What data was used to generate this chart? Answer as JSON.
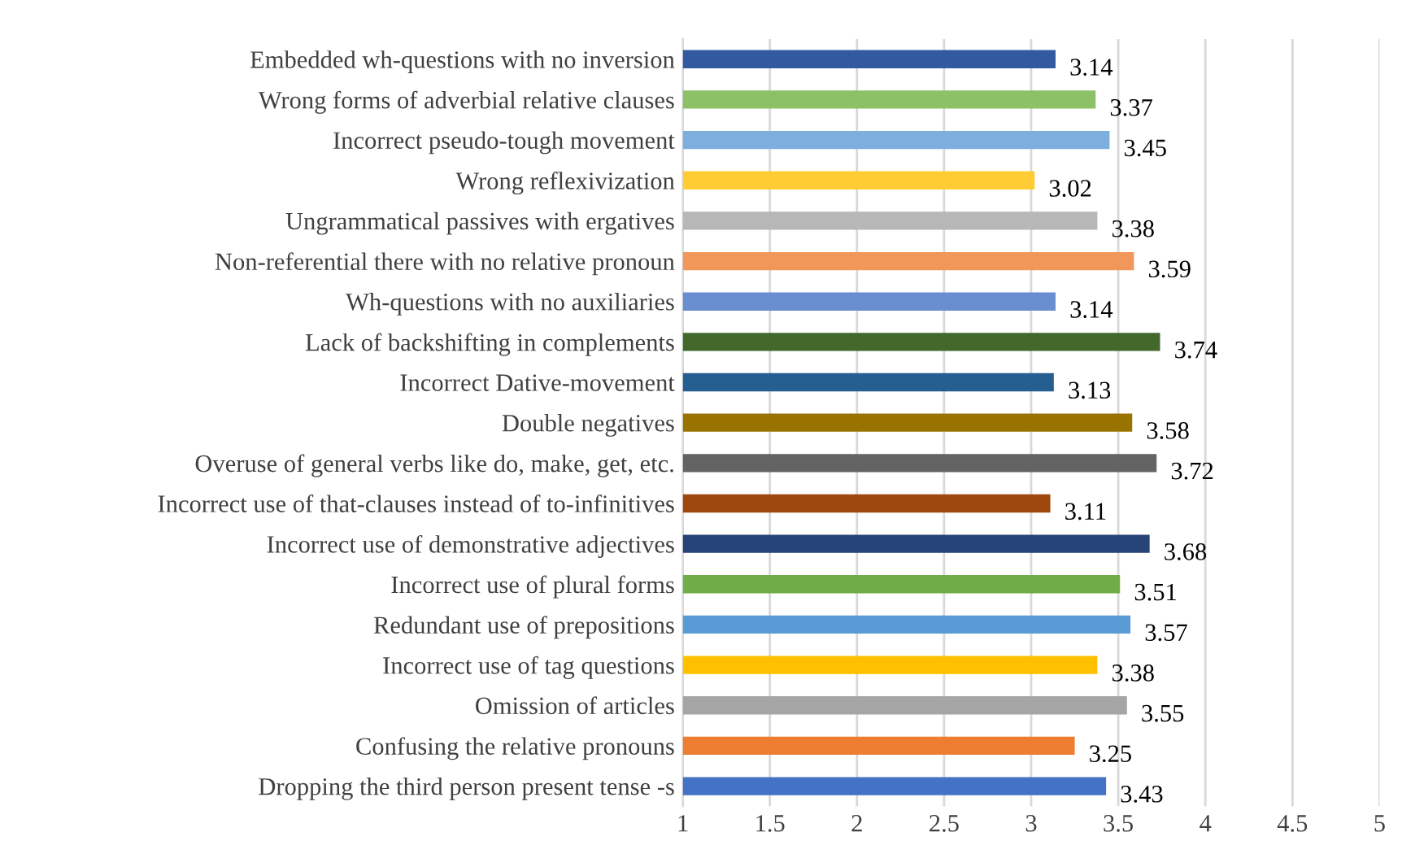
{
  "chart_data": {
    "type": "bar",
    "orientation": "horizontal",
    "categories": [
      "Embedded wh-questions with no inversion",
      "Wrong forms of adverbial relative clauses",
      "Incorrect pseudo-tough movement",
      "Wrong reflexivization",
      "Ungrammatical passives with ergatives",
      "Non-referential there with no relative pronoun",
      "Wh-questions with no auxiliaries",
      "Lack of backshifting in complements",
      "Incorrect Dative-movement",
      "Double negatives",
      "Overuse of general verbs like do, make, get, etc.",
      "Incorrect use of that-clauses instead of to-infinitives",
      "Incorrect use of demonstrative adjectives",
      "Incorrect use of plural forms",
      "Redundant use of prepositions",
      "Incorrect use of tag questions",
      "Omission of articles",
      "Confusing the relative pronouns",
      "Dropping the third person present tense -s"
    ],
    "values": [
      3.14,
      3.37,
      3.45,
      3.02,
      3.38,
      3.59,
      3.14,
      3.74,
      3.13,
      3.58,
      3.72,
      3.11,
      3.68,
      3.51,
      3.57,
      3.38,
      3.55,
      3.25,
      3.43
    ],
    "colors": [
      "#335aa1",
      "#8cc168",
      "#7cafdd",
      "#ffcd33",
      "#b7b7b7",
      "#f1975a",
      "#698ed0",
      "#43682b",
      "#255e91",
      "#997300",
      "#636363",
      "#9e480e",
      "#264478",
      "#70ad47",
      "#5b9bd5",
      "#ffc000",
      "#a5a5a5",
      "#ed7d31",
      "#4472c4"
    ],
    "xlim": [
      1,
      5
    ],
    "xticks": [
      1,
      1.5,
      2,
      2.5,
      3,
      3.5,
      4,
      4.5,
      5
    ],
    "grid": "x",
    "data_labels": true
  }
}
